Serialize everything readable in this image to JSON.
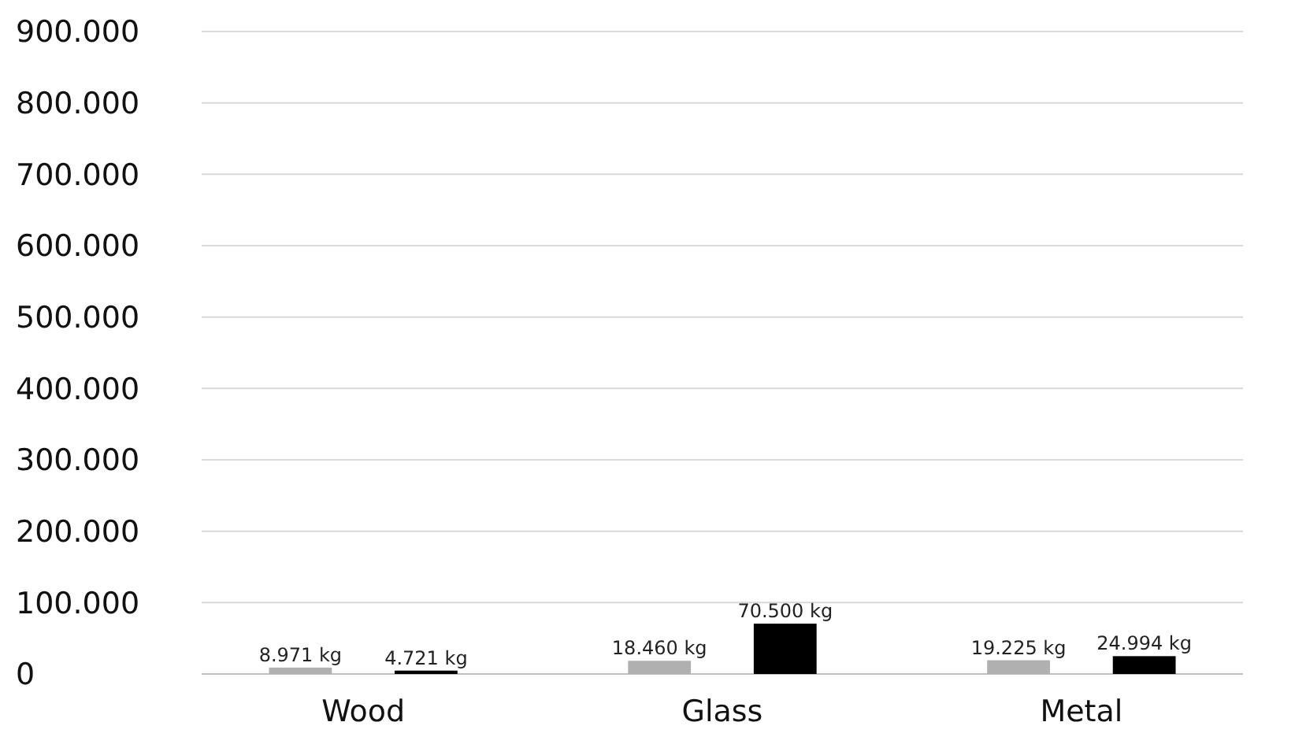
{
  "chart_data": {
    "type": "bar",
    "categories": [
      "Wood",
      "Glass",
      "Metal"
    ],
    "series": [
      {
        "color": "#b0b0b0",
        "values": [
          8971,
          18460,
          19225
        ],
        "value_labels": [
          "8.971 kg",
          "18.460 kg",
          "19.225 kg"
        ]
      },
      {
        "color": "#000000",
        "values": [
          4721,
          70500,
          24994
        ],
        "value_labels": [
          "4.721 kg",
          "70.500 kg",
          "24.994 kg"
        ]
      }
    ],
    "ylim": [
      0,
      900000
    ],
    "yticks": [
      0,
      {
        "value": 100000,
        "label": "100.000"
      },
      {
        "value": 200000,
        "label": "200.000"
      },
      {
        "value": 300000,
        "label": "300.000"
      },
      {
        "value": 400000,
        "label": "400.000"
      },
      {
        "value": 500000,
        "label": "500.000"
      },
      {
        "value": 600000,
        "label": "600.000"
      },
      {
        "value": 700000,
        "label": "700.000"
      },
      {
        "value": 800000,
        "label": "800.000"
      },
      {
        "value": 900000,
        "label": "900.000"
      }
    ],
    "grid": "y"
  }
}
